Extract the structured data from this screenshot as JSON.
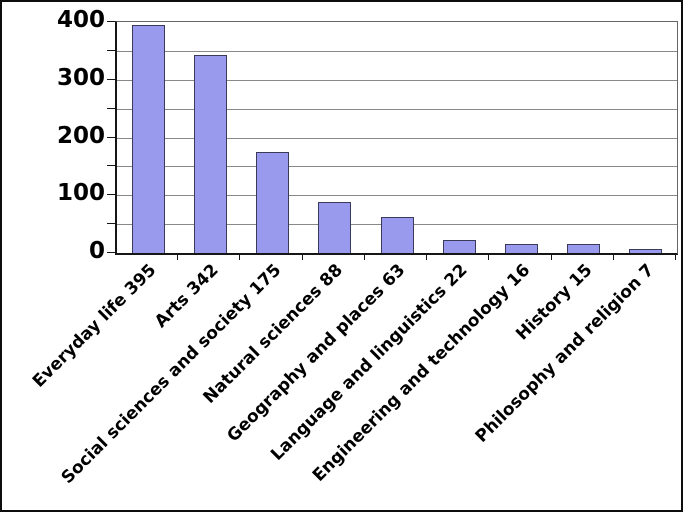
{
  "page": {
    "background": "#ffffff",
    "border_color": "#000000"
  },
  "chart_data": {
    "type": "bar",
    "title": "",
    "xlabel": "",
    "ylabel": "",
    "categories": [
      "Everyday life",
      "Arts",
      "Social sciences and society",
      "Natural sciences",
      "Geography and places",
      "Language and linguistics",
      "Engineering and technology",
      "History",
      "Philosophy and religion"
    ],
    "values": [
      395,
      342,
      175,
      88,
      63,
      22,
      16,
      15,
      7
    ],
    "x_tick_labels": [
      "Everyday life  395",
      "Arts  342",
      "Social sciences and society  175",
      "Natural sciences  88",
      "Geography and places  63",
      "Language and linguistics  22",
      "Engineering and technology  16",
      "History  15",
      "Philosophy and religion  7"
    ],
    "y_tick_labels": [
      "0",
      "100",
      "200",
      "300",
      "400"
    ],
    "y_ticks_labeled": [
      0,
      100,
      200,
      300,
      400
    ],
    "ylim": [
      0,
      400
    ],
    "gridline_interval": 50,
    "grid": true,
    "legend_position": "none",
    "colors": {
      "bar_fill": "#9999ee",
      "bar_border": "#3a3a5c",
      "gridline": "#888888",
      "axis": "#161616",
      "frame": "#666666",
      "background": "#ffffff",
      "text": "#000000"
    }
  }
}
